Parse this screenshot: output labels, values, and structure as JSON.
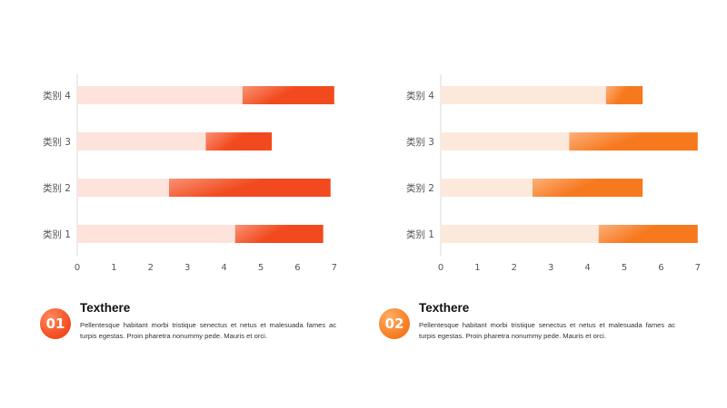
{
  "chart_data": [
    {
      "type": "bar",
      "orientation": "horizontal",
      "stacked": true,
      "categories": [
        "类别 1",
        "类别 2",
        "类别 3",
        "类别 4"
      ],
      "series": [
        {
          "values": [
            4.3,
            2.5,
            3.5,
            4.5
          ]
        },
        {
          "values": [
            2.4,
            4.4,
            1.8,
            2.5
          ]
        }
      ],
      "xlim": [
        0,
        7
      ],
      "xticks": [
        "0",
        "1",
        "2",
        "3",
        "4",
        "5",
        "6",
        "7"
      ],
      "colors": {
        "base": "#fde3dc",
        "accent_light": "#f99274",
        "accent": "#f24a1e"
      },
      "grid": false
    },
    {
      "type": "bar",
      "orientation": "horizontal",
      "stacked": true,
      "categories": [
        "类别 1",
        "类别 2",
        "类别 3",
        "类别 4"
      ],
      "series": [
        {
          "values": [
            4.3,
            2.5,
            3.5,
            4.5
          ]
        },
        {
          "values": [
            2.7,
            3.0,
            3.5,
            1.0
          ]
        }
      ],
      "xlim": [
        0,
        7
      ],
      "xticks": [
        "0",
        "1",
        "2",
        "3",
        "4",
        "5",
        "6",
        "7"
      ],
      "colors": {
        "base": "#fde9dc",
        "accent_light": "#fcb07a",
        "accent": "#f7791e"
      },
      "grid": false
    }
  ],
  "cards": [
    {
      "badge": "01",
      "title": "Texthere",
      "body": "Pellentesque  habitant morbi tristique senectus et netus et malesuada fames ac turpis egestas. Proin pharetra nonummy pede. Mauris et orci."
    },
    {
      "badge": "02",
      "title": "Texthere",
      "body": "Pellentesque  habitant morbi tristique senectus et netus et malesuada fames ac turpis egestas. Proin pharetra nonummy pede. Mauris et orci."
    }
  ]
}
